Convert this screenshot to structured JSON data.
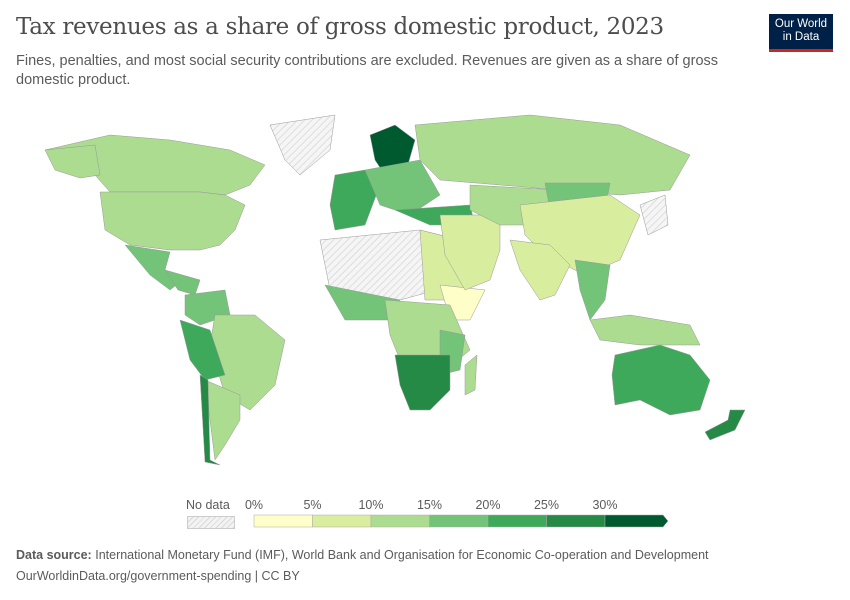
{
  "header": {
    "title": "Tax revenues as a share of gross domestic product, 2023",
    "subtitle": "Fines, penalties, and most social security contributions are excluded. Revenues are given as a share of gross domestic product.",
    "logo_text": "Our World in Data"
  },
  "legend": {
    "no_data_label": "No data",
    "bins": [
      {
        "label": "0%",
        "color": "#fefec9"
      },
      {
        "label": "5%",
        "color": "#d9ed9f"
      },
      {
        "label": "10%",
        "color": "#acdc8f"
      },
      {
        "label": "15%",
        "color": "#73c378"
      },
      {
        "label": "20%",
        "color": "#3ea95b"
      },
      {
        "label": "25%",
        "color": "#258a46"
      },
      {
        "label": "30%",
        "color": "#005a30"
      }
    ]
  },
  "footer": {
    "source_label": "Data source:",
    "source_text": "International Monetary Fund (IMF), World Bank and Organisation for Economic Co-operation and Development",
    "url_license": "OurWorldinData.org/government-spending | CC BY"
  }
}
